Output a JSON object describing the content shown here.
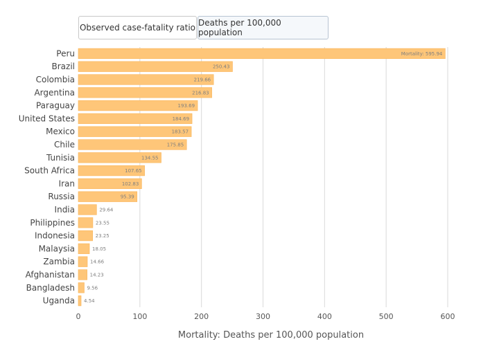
{
  "tabs": [
    {
      "label": "Observed case-fatality ratio",
      "active": false
    },
    {
      "label": "Deaths per 100,000 population",
      "active": true
    }
  ],
  "colors": {
    "bar_fill": "#fec679",
    "bar_stroke": "#f9b458",
    "gridline": "#d9d9d9",
    "axis_text": "#555555",
    "label_text": "#444444",
    "value_text": "#7f7f7f"
  },
  "chart_data": {
    "type": "bar",
    "orientation": "horizontal",
    "categories": [
      "Peru",
      "Brazil",
      "Colombia",
      "Argentina",
      "Paraguay",
      "United States",
      "Mexico",
      "Chile",
      "Tunisia",
      "South Africa",
      "Iran",
      "Russia",
      "India",
      "Philippines",
      "Indonesia",
      "Malaysia",
      "Zambia",
      "Afghanistan",
      "Bangladesh",
      "Uganda"
    ],
    "values": [
      595.94,
      250.43,
      219.66,
      216.83,
      193.69,
      184.69,
      183.57,
      175.85,
      134.55,
      107.65,
      102.83,
      95.39,
      29.64,
      23.55,
      23.25,
      18.05,
      14.66,
      14.23,
      9.56,
      4.54
    ],
    "value_labels": [
      "Mortality: 595.94",
      "250.43",
      "219.66",
      "216.83",
      "193.69",
      "184.69",
      "183.57",
      "175.85",
      "134.55",
      "107.65",
      "102.83",
      "95.39",
      "29.64",
      "23.55",
      "23.25",
      "18.05",
      "14.66",
      "14.23",
      "9.56",
      "4.54"
    ],
    "xlabel": "Mortality: Deaths per 100,000 population",
    "ylabel": "",
    "xlim": [
      0,
      600
    ],
    "xticks": [
      0,
      100,
      200,
      300,
      400,
      500,
      600
    ],
    "grid": true
  }
}
